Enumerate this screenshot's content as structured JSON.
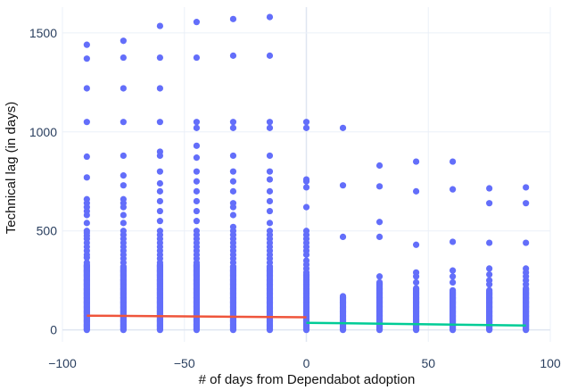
{
  "chart_data": {
    "type": "scatter",
    "title": "",
    "xlabel": "# of days from Dependabot adoption",
    "ylabel": "Technical lag (in days)",
    "xlim": [
      -100,
      100
    ],
    "ylim": [
      -60,
      1630
    ],
    "x_ticks": [
      -100,
      -50,
      0,
      50,
      100
    ],
    "x_tick_labels": [
      "−100",
      "−50",
      "0",
      "50",
      "100"
    ],
    "y_ticks": [
      0,
      500,
      1000,
      1500
    ],
    "y_tick_labels": [
      "0",
      "500",
      "1000",
      "1500"
    ],
    "grid": true,
    "legend": "none",
    "colors": {
      "points": "#636efa",
      "trend_before": "#ef553b",
      "trend_after": "#00cc96",
      "grid": "#ebf0f8"
    },
    "series": [
      {
        "kind": "points",
        "columns": [
          {
            "x": -90,
            "dense_max": 330,
            "values": [
              340,
              365,
              380,
              400,
              420,
              440,
              460,
              475,
              490,
              500,
              540,
              580,
              600,
              620,
              640,
              660,
              770,
              875,
              1050,
              1220,
              1370,
              1440
            ]
          },
          {
            "x": -75,
            "dense_max": 320,
            "values": [
              340,
              360,
              380,
              400,
              420,
              440,
              460,
              480,
              500,
              540,
              580,
              620,
              640,
              660,
              730,
              780,
              880,
              1050,
              1220,
              1375,
              1460
            ]
          },
          {
            "x": -60,
            "dense_max": 330,
            "values": [
              340,
              360,
              380,
              400,
              420,
              440,
              460,
              480,
              500,
              550,
              600,
              650,
              700,
              740,
              800,
              880,
              900,
              1050,
              1220,
              1375,
              1535
            ]
          },
          {
            "x": -45,
            "dense_max": 330,
            "values": [
              340,
              360,
              380,
              400,
              420,
              440,
              460,
              480,
              500,
              550,
              600,
              650,
              700,
              750,
              800,
              870,
              930,
              1020,
              1050,
              1375,
              1555
            ]
          },
          {
            "x": -30,
            "dense_max": 320,
            "values": [
              340,
              360,
              380,
              400,
              420,
              440,
              460,
              480,
              500,
              520,
              580,
              620,
              640,
              700,
              750,
              800,
              880,
              1020,
              1050,
              1385,
              1570
            ]
          },
          {
            "x": -15,
            "dense_max": 320,
            "values": [
              340,
              360,
              380,
              400,
              420,
              440,
              460,
              480,
              500,
              540,
              600,
              650,
              700,
              760,
              800,
              880,
              1020,
              1050,
              1385,
              1580
            ]
          },
          {
            "x": 0,
            "dense_max": 280,
            "values": [
              290,
              310,
              330,
              350,
              380,
              400,
              420,
              440,
              460,
              480,
              500,
              620,
              720,
              750,
              760,
              1020,
              1050
            ]
          },
          {
            "x": 15,
            "dense_max": 170,
            "values": [
              470,
              730,
              1020
            ]
          },
          {
            "x": 30,
            "dense_max": 240,
            "values": [
              270,
              470,
              545,
              725,
              830
            ]
          },
          {
            "x": 45,
            "dense_max": 210,
            "values": [
              240,
              270,
              290,
              430,
              700,
              850
            ]
          },
          {
            "x": 60,
            "dense_max": 200,
            "values": [
              240,
              270,
              300,
              445,
              710,
              850
            ]
          },
          {
            "x": 75,
            "dense_max": 200,
            "values": [
              230,
              250,
              280,
              310,
              440,
              640,
              715
            ]
          },
          {
            "x": 90,
            "dense_max": 210,
            "values": [
              230,
              250,
              270,
              290,
              310,
              440,
              640,
              720
            ]
          }
        ]
      },
      {
        "kind": "trend",
        "segment": "before",
        "x": [
          -90,
          0
        ],
        "y": [
          72,
          64
        ]
      },
      {
        "kind": "trend",
        "segment": "after",
        "x": [
          0,
          90
        ],
        "y": [
          36,
          22
        ]
      }
    ]
  }
}
